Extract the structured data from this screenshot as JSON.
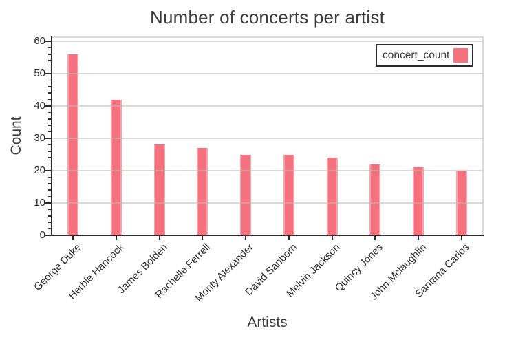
{
  "title": "Number of concerts per artist",
  "axes": {
    "x_label": "Artists",
    "y_label": "Count"
  },
  "legend": {
    "label": "concert_count",
    "position": "top-right"
  },
  "colors": {
    "bar": "#f4717d",
    "grid": "#bdbdbd",
    "axis": "#2b2b2b",
    "plot_border": "#d9d9d9",
    "title_text": "#3c3c3c",
    "tick_text": "#2e2e2e"
  },
  "chart_data": {
    "type": "bar",
    "title": "Number of concerts per artist",
    "xlabel": "Artists",
    "ylabel": "Count",
    "categories": [
      "George Duke",
      "Herbie Hancock",
      "James Bolden",
      "Rachelle Ferrell",
      "Monty Alexander",
      "David Sanborn",
      "Melvin Jackson",
      "Quincy Jones",
      "John Mclaughlin",
      "Santana Carlos"
    ],
    "series": [
      {
        "name": "concert_count",
        "values": [
          56,
          42,
          28,
          27,
          25,
          25,
          24,
          22,
          21,
          20
        ]
      }
    ],
    "ylim": [
      0,
      61.5
    ],
    "yticks": [
      0,
      10,
      20,
      30,
      40,
      50,
      60
    ],
    "y_minor_tick_step": 2,
    "x_tick_rotation_deg": 45,
    "grid": true,
    "legend_position": "top-right",
    "bar_color": "#f4717d"
  }
}
